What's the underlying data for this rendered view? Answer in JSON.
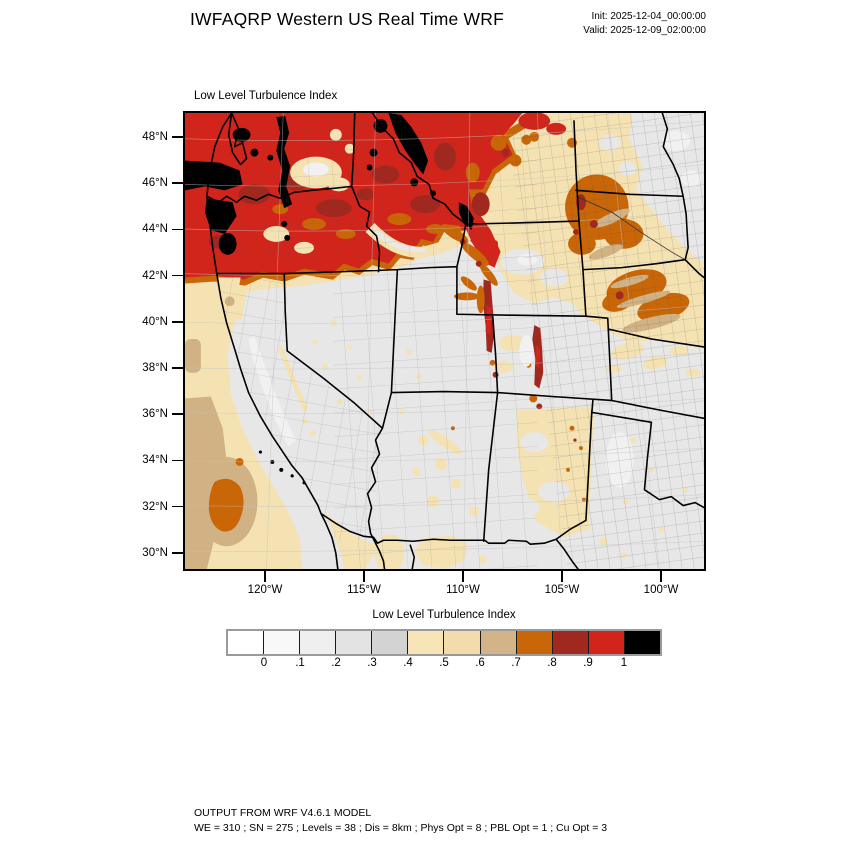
{
  "header": {
    "title": "IWFAQRP Western US Real Time WRF",
    "init": "Init: 2025-12-04_00:00:00",
    "valid": "Valid: 2025-12-09_02:00:00"
  },
  "map": {
    "subtitle": "Low Level Turbulence Index",
    "lat_ticks": [
      "48°N",
      "46°N",
      "44°N",
      "42°N",
      "40°N",
      "38°N",
      "36°N",
      "34°N",
      "32°N",
      "30°N"
    ],
    "lon_ticks": [
      "120°W",
      "115°W",
      "110°W",
      "105°W",
      "100°W"
    ]
  },
  "colorbar": {
    "title": "Low Level Turbulence Index",
    "tick_labels": [
      "0",
      ".1",
      ".2",
      ".3",
      ".4",
      ".5",
      ".6",
      ".7",
      ".8",
      ".9",
      "1"
    ],
    "colors": [
      "#ffffff",
      "#f8f8f8",
      "#efefef",
      "#e3e3e3",
      "#d3d3d3",
      "#f8e5b7",
      "#f2dcab",
      "#d2b488",
      "#c96608",
      "#a1281f",
      "#d1251c",
      "#000000"
    ]
  },
  "footer": {
    "line1": "OUTPUT FROM WRF V4.6.1 MODEL",
    "line2": "WE = 310 ; SN = 275 ; Levels = 38 ; Dis = 8km ; Phys Opt = 8 ; PBL Opt = 1 ; Cu Opt = 3"
  },
  "palette": {
    "red": "#d1251c",
    "darkred": "#a1281f",
    "orange": "#c96608",
    "cream": "#f5e2b2",
    "tan": "#d0b284",
    "gray1": "#f1f1f1",
    "gray2": "#e7e7e7",
    "gray3": "#d9d9d9",
    "black": "#000000"
  },
  "chart_data": {
    "type": "heatmap",
    "title": "Low Level Turbulence Index",
    "x_tick_labels": [
      "120°W",
      "115°W",
      "110°W",
      "105°W",
      "100°W"
    ],
    "y_tick_labels": [
      "48°N",
      "46°N",
      "44°N",
      "42°N",
      "40°N",
      "38°N",
      "36°N",
      "34°N",
      "32°N",
      "30°N"
    ],
    "x_range_deg_west": [
      124.2,
      97.7
    ],
    "y_range_deg_north": [
      29.5,
      48.6
    ],
    "colorbar_values": [
      0,
      0.1,
      0.2,
      0.3,
      0.4,
      0.5,
      0.6,
      0.7,
      0.8,
      0.9,
      1
    ],
    "colorbar_colors": [
      "#ffffff",
      "#f8f8f8",
      "#efefef",
      "#e3e3e3",
      "#d3d3d3",
      "#f8e5b7",
      "#f2dcab",
      "#d2b488",
      "#c96608",
      "#a1281f",
      "#d1251c",
      "#000000"
    ],
    "legend_position": "bottom",
    "notable_features": [
      "Very high turbulence index (0.9-1) covers Washington, Oregon, Idaho and western Montana, including offshore waters",
      "Black cells (index 1) along the Cascades, Olympic coast waters and northern Rockies ridgelines",
      "Orange swaths (0.7-0.8) over western North/South Dakota and Nebraska sandhills, with small dark-red maxima",
      "Dark red ridgelines along the Wasatch Range (Utah) and Colorado Front Range",
      "Orange blob (0.7-0.8) offshore of southern California surrounded by tan (0.6-0.7) water",
      "Low values (0-0.3, grays) over California, Nevada, Arizona, Kansas, Oklahoma and the Texas panhandle",
      "Cream values (0.4-0.6) over the high plains, eastern New Mexico and northern Mexico"
    ]
  }
}
